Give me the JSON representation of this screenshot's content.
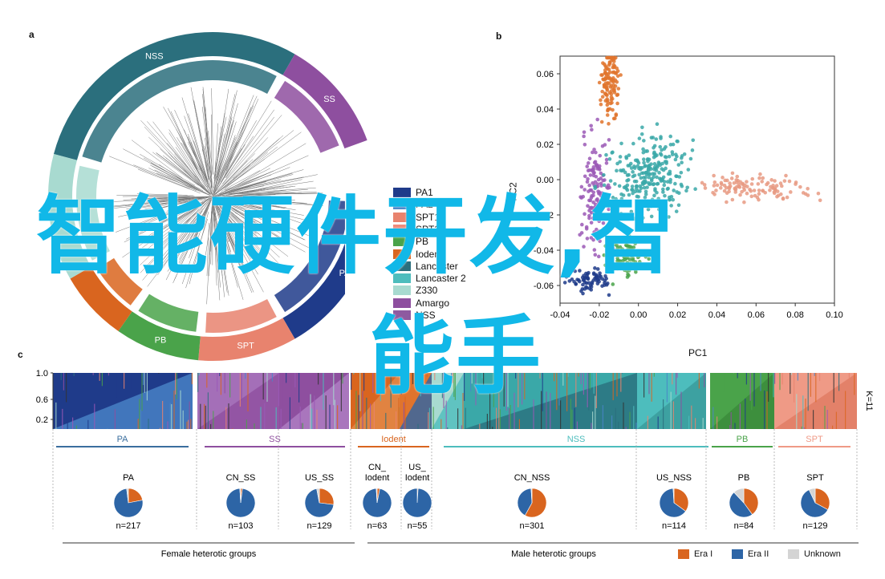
{
  "panel_labels": {
    "a": "a",
    "b": "b",
    "c": "c"
  },
  "overlay": {
    "line1": "智能硬件开发,智",
    "line2": "能手"
  },
  "panel_a": {
    "ring_labels": [
      "NSS",
      "SS",
      "PA",
      "SPT",
      "PB"
    ],
    "legend": [
      {
        "label": "PA1",
        "color": "#1f3b8a"
      },
      {
        "label": "PA2",
        "color": "#4a86c8"
      },
      {
        "label": "SPT1",
        "color": "#e8836e"
      },
      {
        "label": "SPT2",
        "color": "#ef8a7a"
      },
      {
        "label": "PB",
        "color": "#4aa34a"
      },
      {
        "label": "Iodent",
        "color": "#d9651f"
      },
      {
        "label": "Lancaster",
        "color": "#2b6f7d"
      },
      {
        "label": "Lancaster 2",
        "color": "#4dbdbd"
      },
      {
        "label": "Z330",
        "color": "#a8dad0"
      },
      {
        "label": "Amargo",
        "color": "#8e4f9f"
      },
      {
        "label": "NSS",
        "color": "#8e5aa0"
      }
    ]
  },
  "panel_b": {
    "xlabel": "PC1",
    "ylabel": "PC2",
    "xticks": [
      "-0.04",
      "-0.02",
      "0.00",
      "0.02",
      "0.04",
      "0.06",
      "0.08",
      "0.10"
    ],
    "yticks": [
      "0.06",
      "0.04",
      "0.02",
      "0.00",
      "-0.02",
      "-0.04",
      "-0.06"
    ]
  },
  "chart_data": {
    "type": "pie",
    "legend": [
      {
        "label": "Era I",
        "color": "#d9651f"
      },
      {
        "label": "Era II",
        "color": "#2d65a6"
      },
      {
        "label": "Unknown",
        "color": "#d4d4d4"
      }
    ],
    "groups": [
      {
        "label": "PA",
        "color": "#3a6e9e"
      },
      {
        "label": "SS",
        "color": "#8e4f9f"
      },
      {
        "label": "Iodent",
        "color": "#d9651f"
      },
      {
        "label": "NSS",
        "color": "#4dbdbd"
      },
      {
        "label": "PB",
        "color": "#4aa34a"
      },
      {
        "label": "SPT",
        "color": "#ef9a86"
      }
    ],
    "pies": [
      {
        "name": "PA",
        "n": "n=217",
        "era1": 0.22,
        "era2": 0.76,
        "unknown": 0.02
      },
      {
        "name": "CN_SS",
        "n": "n=103",
        "era1": 0.02,
        "era2": 0.97,
        "unknown": 0.01
      },
      {
        "name": "US_SS",
        "n": "n=129",
        "era1": 0.27,
        "era2": 0.7,
        "unknown": 0.03
      },
      {
        "name": "CN_\nIodent",
        "n": "n=63",
        "era1": 0.03,
        "era2": 0.96,
        "unknown": 0.01
      },
      {
        "name": "US_\nIodent",
        "n": "n=55",
        "era1": 0.01,
        "era2": 0.99,
        "unknown": 0.0
      },
      {
        "name": "CN_NSS",
        "n": "n=301",
        "era1": 0.58,
        "era2": 0.41,
        "unknown": 0.01
      },
      {
        "name": "US_NSS",
        "n": "n=114",
        "era1": 0.35,
        "era2": 0.64,
        "unknown": 0.01
      },
      {
        "name": "PB",
        "n": "n=84",
        "era1": 0.4,
        "era2": 0.48,
        "unknown": 0.12
      },
      {
        "name": "SPT",
        "n": "n=129",
        "era1": 0.33,
        "era2": 0.6,
        "unknown": 0.07
      }
    ],
    "yticks": [
      "1.0",
      "0.6",
      "0.2"
    ],
    "k_label": "K=11",
    "female_label": "Female heterotic groups",
    "male_label": "Male heterotic groups"
  }
}
